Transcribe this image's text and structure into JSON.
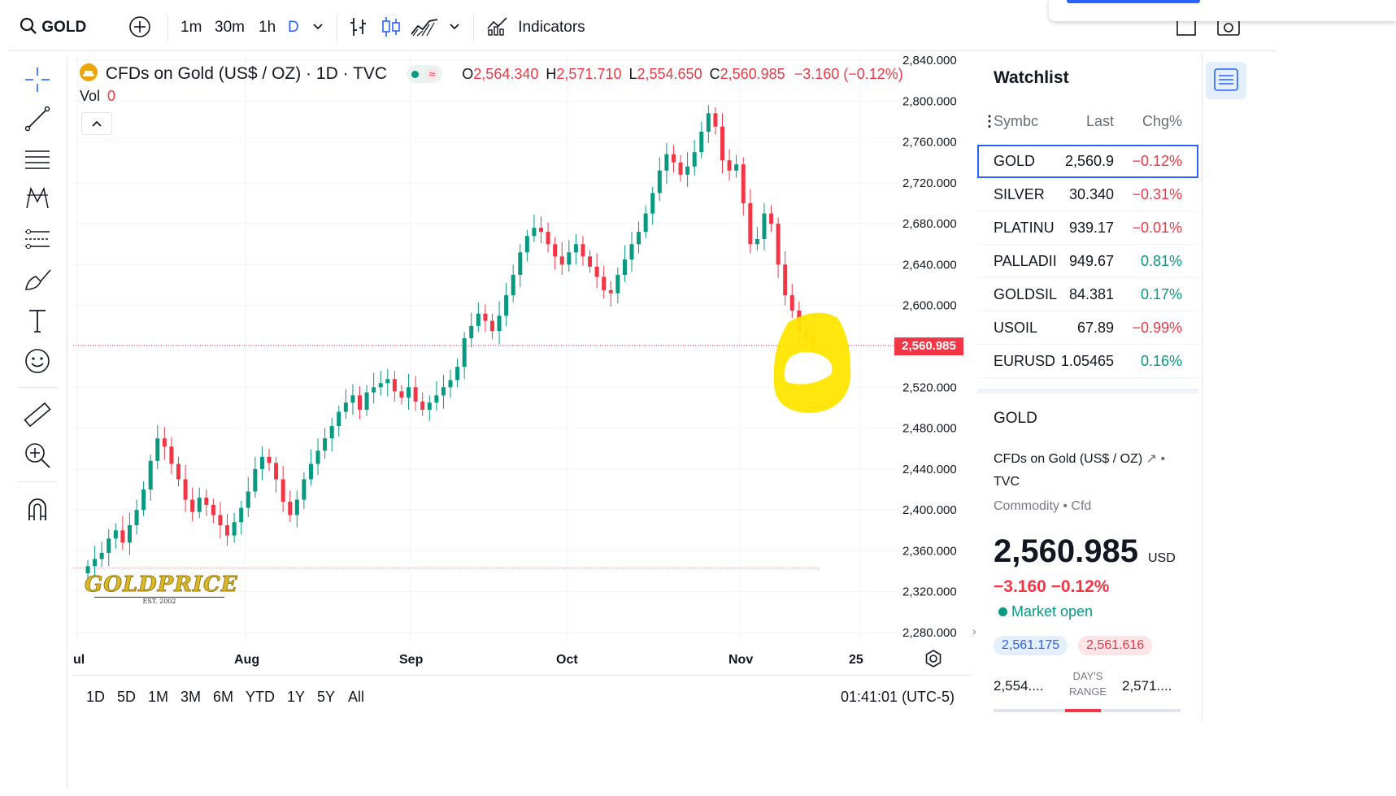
{
  "toolbar": {
    "symbol": "GOLD",
    "intervals": [
      "1m",
      "30m",
      "1h",
      "D"
    ],
    "indicators_label": "Indicators"
  },
  "legend": {
    "title": "CFDs on Gold (US$ / OZ) · 1D · TVC",
    "open_label": "O",
    "open": "2,564.340",
    "high_label": "H",
    "high": "2,571.710",
    "low_label": "L",
    "low": "2,554.650",
    "close_label": "C",
    "close": "2,560.985",
    "change": "−3.160 (−0.12%)",
    "vol_label": "Vol",
    "vol": "0"
  },
  "price_axis": [
    "2,840.000",
    "2,800.000",
    "2,760.000",
    "2,720.000",
    "2,680.000",
    "2,640.000",
    "2,600.000",
    "2,520.000",
    "2,480.000",
    "2,440.000",
    "2,400.000",
    "2,360.000",
    "2,320.000",
    "2,280.000"
  ],
  "current_price": "2,560.985",
  "time_axis": [
    "ul",
    "Aug",
    "Sep",
    "Oct",
    "Nov",
    "25"
  ],
  "watermark": {
    "text": "GOLDPRICE",
    "sub": "EST. 2002"
  },
  "ranges": [
    "1D",
    "5D",
    "1M",
    "3M",
    "6M",
    "YTD",
    "1Y",
    "5Y",
    "All"
  ],
  "clock": "01:41:01 (UTC-5)",
  "watchlist": {
    "title": "Watchlist",
    "headers": {
      "symbol": "Symbc",
      "last": "Last",
      "chg": "Chg%"
    },
    "rows": [
      {
        "symbol": "GOLD",
        "last": "2,560.9",
        "chg": "−0.12%",
        "dir": "neg"
      },
      {
        "symbol": "SILVER",
        "last": "30.340",
        "chg": "−0.31%",
        "dir": "neg"
      },
      {
        "symbol": "PLATINU",
        "last": "939.17",
        "chg": "−0.01%",
        "dir": "neg"
      },
      {
        "symbol": "PALLADII",
        "last": "949.67",
        "chg": "0.81%",
        "dir": "pos"
      },
      {
        "symbol": "GOLDSIL'",
        "last": "84.381",
        "chg": "0.17%",
        "dir": "pos"
      },
      {
        "symbol": "USOIL",
        "last": "67.89",
        "chg": "−0.99%",
        "dir": "neg"
      },
      {
        "symbol": "EURUSD",
        "last": "1.05465",
        "chg": "0.16%",
        "dir": "pos"
      }
    ]
  },
  "details": {
    "symbol": "GOLD",
    "name": "CFDs on Gold (US$ / OZ)",
    "exchange": "TVC",
    "category": "Commodity • Cfd",
    "price": "2,560.985",
    "currency": "USD",
    "change": "−3.160  −0.12%",
    "market_status": "Market open",
    "bid": "2,561.175",
    "ask": "2,561.616",
    "day_low": "2,554....",
    "day_high": "2,571....",
    "range_label_1": "DAY'S",
    "range_label_2": "RANGE"
  },
  "chart_data": {
    "type": "candlestick",
    "title": "CFDs on Gold (US$ / OZ) · 1D · TVC",
    "x": [
      "Jul",
      "Aug",
      "Sep",
      "Oct",
      "Nov",
      "25"
    ],
    "ylim": [
      2270,
      2850
    ],
    "current_price": 2560.985,
    "close_series": [
      2345,
      2352,
      2358,
      2372,
      2380,
      2368,
      2385,
      2400,
      2420,
      2448,
      2470,
      2462,
      2445,
      2430,
      2410,
      2398,
      2412,
      2405,
      2395,
      2385,
      2375,
      2388,
      2402,
      2418,
      2440,
      2452,
      2446,
      2430,
      2408,
      2395,
      2410,
      2430,
      2445,
      2458,
      2470,
      2482,
      2496,
      2505,
      2512,
      2498,
      2515,
      2520,
      2524,
      2528,
      2516,
      2510,
      2520,
      2506,
      2498,
      2505,
      2512,
      2520,
      2527,
      2540,
      2568,
      2580,
      2592,
      2585,
      2575,
      2590,
      2610,
      2630,
      2652,
      2668,
      2676,
      2672,
      2660,
      2648,
      2640,
      2652,
      2660,
      2648,
      2638,
      2628,
      2615,
      2612,
      2630,
      2645,
      2660,
      2672,
      2690,
      2710,
      2732,
      2748,
      2740,
      2728,
      2736,
      2750,
      2770,
      2788,
      2775,
      2742,
      2732,
      2738,
      2700,
      2660,
      2665,
      2690,
      2680,
      2640,
      2610,
      2595,
      2575,
      2568,
      2560.985
    ]
  }
}
